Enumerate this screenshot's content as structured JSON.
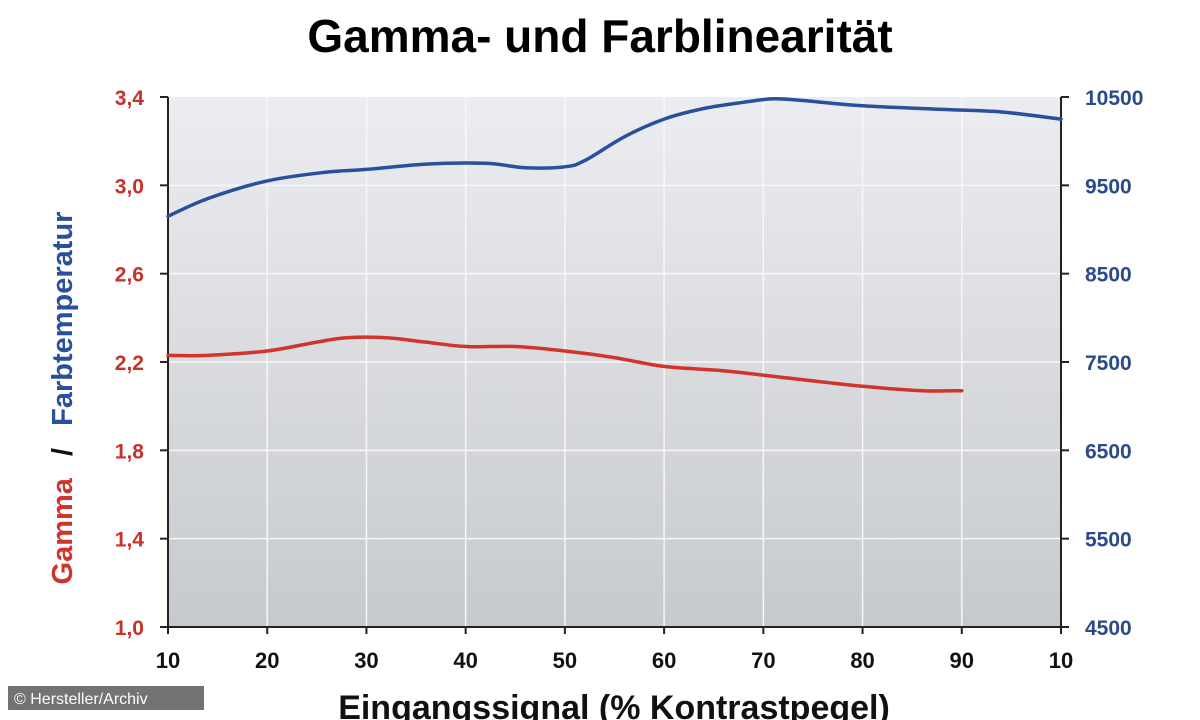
{
  "chart_data": {
    "type": "line",
    "title": "Gamma- und Farblinearität",
    "xlabel": "Eingangssignal (% Kontrastpegel)",
    "ylabel_left": {
      "part1": "Gamma",
      "separator": "/",
      "part2": "Farbtemperatur"
    },
    "x_ticks": [
      "10",
      "20",
      "30",
      "40",
      "50",
      "60",
      "70",
      "80",
      "90",
      "10"
    ],
    "xlim": [
      10,
      100
    ],
    "ylim_left": [
      1.0,
      3.4
    ],
    "ylim_right": [
      4500,
      10500
    ],
    "y_ticks_left": [
      "1,0",
      "1,4",
      "1,8",
      "2,2",
      "2,6",
      "3,0",
      "3,4"
    ],
    "y_ticks_right": [
      "4500",
      "5500",
      "6500",
      "7500",
      "8500",
      "9500",
      "10500"
    ],
    "series": [
      {
        "name": "Gamma",
        "axis": "left",
        "color": "#d2332b",
        "x": [
          10,
          14,
          20,
          25,
          28,
          32,
          36,
          40,
          45,
          50,
          55,
          60,
          66,
          72,
          80,
          86,
          90
        ],
        "values": [
          2.23,
          2.23,
          2.25,
          2.29,
          2.31,
          2.31,
          2.29,
          2.27,
          2.27,
          2.25,
          2.22,
          2.18,
          2.16,
          2.13,
          2.09,
          2.07,
          2.07
        ]
      },
      {
        "name": "Farbtemperatur",
        "axis": "right",
        "color": "#2a4f9c",
        "x": [
          10,
          14,
          20,
          26,
          30,
          36,
          42,
          46,
          50,
          52,
          56,
          60,
          64,
          68,
          71,
          74,
          80,
          88,
          94,
          100
        ],
        "values": [
          9150,
          9350,
          9550,
          9650,
          9680,
          9740,
          9750,
          9700,
          9710,
          9780,
          10050,
          10250,
          10370,
          10440,
          10480,
          10460,
          10400,
          10360,
          10330,
          10250
        ]
      }
    ]
  },
  "credit": "© Hersteller/Archiv",
  "colors": {
    "plot_bg_top": "#e9ebee",
    "plot_bg_bottom": "#c9ccd1",
    "grid": "#f8f8f8",
    "left_axis": "#c8302a",
    "right_axis": "#2b4a8c"
  }
}
